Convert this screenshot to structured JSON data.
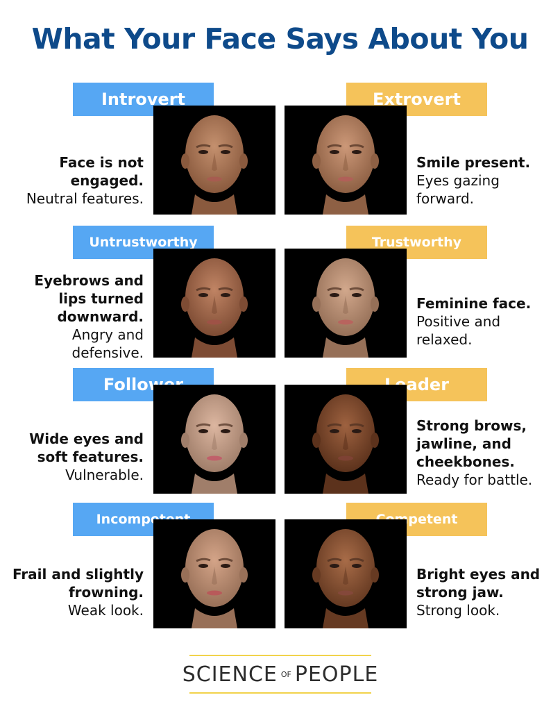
{
  "title": "What Your Face Says About You",
  "rows": [
    {
      "left": {
        "label": "Introvert",
        "bold": "Face is not engaged.",
        "normal": "Neutral features.",
        "skin": "#c4906e",
        "dark": "#8a5a3e",
        "lips": "#a65c50"
      },
      "right": {
        "label": "Extrovert",
        "bold": "Smile present.",
        "normal": "Eyes gazing forward.",
        "skin": "#cc9878",
        "dark": "#8e6044",
        "lips": "#b06058"
      }
    },
    {
      "left": {
        "label": "Untrustworthy",
        "bold": "Eyebrows and lips turned downward.",
        "normal": "Angry and defensive.",
        "skin": "#c08464",
        "dark": "#7e4c34",
        "lips": "#9e5246"
      },
      "right": {
        "label": "Trustworthy",
        "bold": "Feminine face.",
        "normal": "Positive and relaxed.",
        "skin": "#d2a88c",
        "dark": "#967058",
        "lips": "#b8645e"
      }
    },
    {
      "left": {
        "label": "Follower",
        "bold": "Wide eyes and soft features.",
        "normal": "Vulnerable.",
        "skin": "#dcb6a0",
        "dark": "#a07e6a",
        "lips": "#c0606a"
      },
      "right": {
        "label": "Leader",
        "bold": "Strong brows, jawline, and cheekbones.",
        "normal": "Ready for battle.",
        "skin": "#9e6240",
        "dark": "#5c321c",
        "lips": "#7e4234"
      }
    },
    {
      "left": {
        "label": "Incompetent",
        "bold": "Frail and slightly frowning.",
        "normal": "Weak look.",
        "skin": "#d4a488",
        "dark": "#987058",
        "lips": "#b85a5a"
      },
      "right": {
        "label": "Competent",
        "bold": "Bright eyes and strong jaw.",
        "normal": "Strong look.",
        "skin": "#a86c48",
        "dark": "#663a22",
        "lips": "#84483a"
      }
    }
  ],
  "logo": {
    "left": "SCIENCE",
    "middle": "OF",
    "right": "PEOPLE",
    "line_color": "#f2d34c"
  },
  "colors": {
    "title": "#0e4a8a",
    "left_label": "#56a7f3",
    "right_label": "#f5c35a"
  }
}
